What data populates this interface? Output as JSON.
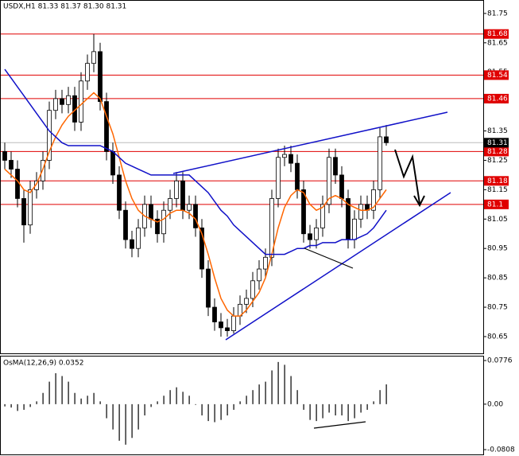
{
  "chart_data": [
    {
      "type": "candlestick",
      "title": "USDX,H1  81.33 81.37 81.30 81.31",
      "open": [
        81.28,
        81.25,
        81.22,
        81.12,
        81.03,
        81.15,
        81.18,
        81.25,
        81.42,
        81.46,
        81.44,
        81.47,
        81.38,
        81.52,
        81.58,
        81.62,
        81.45,
        81.28,
        81.2,
        81.08,
        80.98,
        80.95,
        81.02,
        81.1,
        81.05,
        81.0,
        81.08,
        81.12,
        81.18,
        81.08,
        81.1,
        81.02,
        80.88,
        80.75,
        80.7,
        80.68,
        80.67,
        80.72,
        80.76,
        80.78,
        80.84,
        80.88,
        80.92,
        81.12,
        81.26,
        81.27,
        81.24,
        81.15,
        81.0,
        80.98,
        81.02,
        81.1,
        81.26,
        81.2,
        81.12,
        80.98,
        81.05,
        81.1,
        81.08,
        81.15,
        81.33
      ],
      "high": [
        81.31,
        81.28,
        81.25,
        81.15,
        81.18,
        81.21,
        81.28,
        81.45,
        81.49,
        81.49,
        81.5,
        81.5,
        81.55,
        81.61,
        81.68,
        81.65,
        81.48,
        81.31,
        81.23,
        81.11,
        81.01,
        81.05,
        81.13,
        81.13,
        81.08,
        81.11,
        81.15,
        81.21,
        81.21,
        81.13,
        81.13,
        81.05,
        80.91,
        80.78,
        80.73,
        80.71,
        80.75,
        80.79,
        80.81,
        80.87,
        80.91,
        80.95,
        81.15,
        81.29,
        81.3,
        81.3,
        81.27,
        81.18,
        81.03,
        81.05,
        81.13,
        81.29,
        81.29,
        81.23,
        81.15,
        81.08,
        81.13,
        81.13,
        81.18,
        81.36,
        81.37
      ],
      "low": [
        81.22,
        81.19,
        81.09,
        80.97,
        81.0,
        81.12,
        81.15,
        81.22,
        81.39,
        81.41,
        81.41,
        81.35,
        81.35,
        81.49,
        81.55,
        81.42,
        81.25,
        81.17,
        81.05,
        80.95,
        80.92,
        80.92,
        80.99,
        81.02,
        80.97,
        80.97,
        81.05,
        81.09,
        81.05,
        81.05,
        80.99,
        80.85,
        80.72,
        80.67,
        80.65,
        80.65,
        80.66,
        80.69,
        80.73,
        80.75,
        80.81,
        80.85,
        80.89,
        81.09,
        81.23,
        81.21,
        81.12,
        80.97,
        80.95,
        80.95,
        80.99,
        81.07,
        81.17,
        81.09,
        80.95,
        80.95,
        81.02,
        81.05,
        81.05,
        81.12,
        81.3
      ],
      "close": [
        81.25,
        81.22,
        81.12,
        81.03,
        81.15,
        81.18,
        81.25,
        81.42,
        81.46,
        81.44,
        81.47,
        81.38,
        81.52,
        81.58,
        81.62,
        81.45,
        81.28,
        81.2,
        81.08,
        80.98,
        80.95,
        81.02,
        81.1,
        81.05,
        81.0,
        81.08,
        81.12,
        81.18,
        81.08,
        81.1,
        81.02,
        80.88,
        80.75,
        80.7,
        80.68,
        80.67,
        80.72,
        80.76,
        80.78,
        80.84,
        80.88,
        80.92,
        81.12,
        81.26,
        81.27,
        81.24,
        81.15,
        81.0,
        80.98,
        81.02,
        81.1,
        81.26,
        81.2,
        81.12,
        80.98,
        81.05,
        81.1,
        81.08,
        81.15,
        81.33,
        81.31
      ],
      "lines": [
        {
          "color": "#ff6600",
          "values": [
            81.22,
            81.2,
            81.18,
            81.15,
            81.14,
            81.17,
            81.22,
            81.28,
            81.33,
            81.37,
            81.4,
            81.42,
            81.44,
            81.46,
            81.48,
            81.46,
            81.4,
            81.34,
            81.26,
            81.18,
            81.12,
            81.08,
            81.06,
            81.05,
            81.04,
            81.05,
            81.07,
            81.08,
            81.08,
            81.07,
            81.05,
            81.0,
            80.93,
            80.85,
            80.78,
            80.74,
            80.72,
            80.72,
            80.74,
            80.77,
            80.8,
            80.85,
            80.93,
            81.02,
            81.09,
            81.13,
            81.15,
            81.14,
            81.1,
            81.08,
            81.09,
            81.12,
            81.13,
            81.12,
            81.1,
            81.09,
            81.08,
            81.08,
            81.09,
            81.12,
            81.15
          ]
        },
        {
          "color": "#1010c8",
          "values": [
            81.56,
            81.53,
            81.5,
            81.47,
            81.44,
            81.41,
            81.38,
            81.35,
            81.33,
            81.31,
            81.3,
            81.3,
            81.3,
            81.3,
            81.3,
            81.3,
            81.29,
            81.28,
            81.26,
            81.24,
            81.23,
            81.22,
            81.21,
            81.2,
            81.2,
            81.2,
            81.2,
            81.2,
            81.2,
            81.2,
            81.18,
            81.16,
            81.14,
            81.11,
            81.08,
            81.06,
            81.03,
            81.01,
            80.99,
            80.97,
            80.95,
            80.93,
            80.93,
            80.93,
            80.93,
            80.94,
            80.95,
            80.95,
            80.96,
            80.96,
            80.97,
            80.97,
            80.97,
            80.98,
            80.98,
            80.98,
            80.99,
            81.0,
            81.02,
            81.05,
            81.08
          ]
        }
      ],
      "levels": [
        81.68,
        81.54,
        81.46,
        81.28,
        81.18,
        81.1
      ],
      "level_color": "#e00000",
      "current_price": 81.31,
      "ylim": [
        80.593,
        81.793
      ],
      "yticks": [
        81.75,
        81.65,
        81.55,
        81.45,
        81.35,
        81.25,
        81.15,
        81.05,
        80.95,
        80.85,
        80.75,
        80.65
      ]
    },
    {
      "type": "bar",
      "title": "OsMA(12,26,9) 0.0352",
      "color": "#000000",
      "values": [
        -0.004,
        -0.006,
        -0.012,
        -0.01,
        -0.005,
        0.005,
        0.02,
        0.04,
        0.055,
        0.05,
        0.04,
        0.02,
        0.01,
        0.015,
        0.02,
        0.005,
        -0.025,
        -0.045,
        -0.065,
        -0.072,
        -0.06,
        -0.045,
        -0.02,
        -0.005,
        0.005,
        0.015,
        0.025,
        0.03,
        0.022,
        0.015,
        0.0,
        -0.02,
        -0.03,
        -0.032,
        -0.028,
        -0.02,
        -0.01,
        0.005,
        0.015,
        0.025,
        0.035,
        0.04,
        0.06,
        0.075,
        0.07,
        0.05,
        0.025,
        -0.01,
        -0.028,
        -0.03,
        -0.025,
        -0.015,
        -0.02,
        -0.02,
        -0.03,
        -0.025,
        -0.015,
        -0.01,
        0.005,
        0.025,
        0.0352
      ],
      "ylim": [
        -0.0893,
        0.0847
      ],
      "yticks": [
        0.0776,
        {
          "value": 0,
          "label": "0.00"
        },
        -0.0808
      ]
    }
  ]
}
